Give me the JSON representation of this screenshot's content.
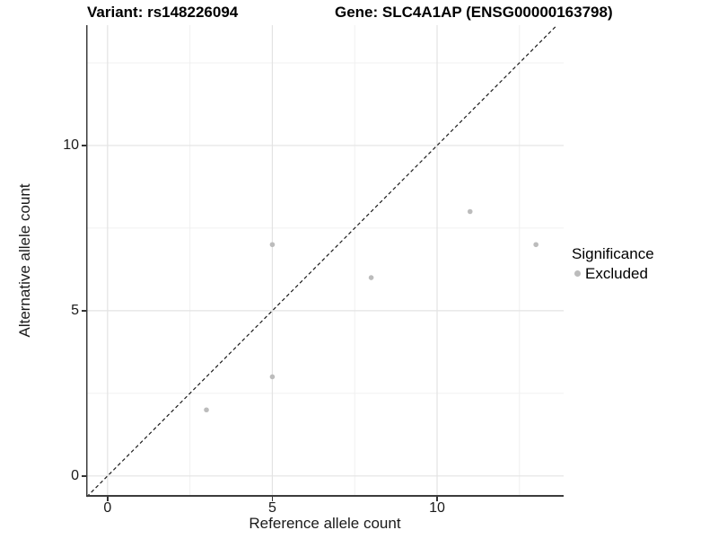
{
  "chart_data": {
    "type": "scatter",
    "title_left": "Variant: rs148226094",
    "title_right": "Gene: SLC4A1AP (ENSG00000163798)",
    "xlabel": "Reference allele count",
    "ylabel": "Alternative allele count",
    "xlim": [
      -0.65,
      13.84
    ],
    "ylim": [
      -0.63,
      13.64
    ],
    "x_major_ticks": [
      0,
      5,
      10
    ],
    "x_minor_ticks": [
      2.5,
      7.5,
      12.5
    ],
    "y_major_ticks": [
      0,
      5,
      10
    ],
    "y_minor_ticks": [
      2.5,
      7.5,
      12.5
    ],
    "grid": true,
    "points": [
      {
        "x": 3,
        "y": 2,
        "group": "Excluded"
      },
      {
        "x": 5,
        "y": 3,
        "group": "Excluded"
      },
      {
        "x": 5,
        "y": 7,
        "group": "Excluded"
      },
      {
        "x": 8,
        "y": 6,
        "group": "Excluded"
      },
      {
        "x": 11,
        "y": 8,
        "group": "Excluded"
      },
      {
        "x": 13,
        "y": 7,
        "group": "Excluded"
      }
    ],
    "abline": {
      "slope": 1,
      "intercept": 0,
      "style": "dashed"
    },
    "colors": {
      "point": "#bcbcbc",
      "grid_major": "#e3e3e3",
      "grid_minor": "#f0f0f0",
      "axis_line": "#3c3c3c",
      "abline": "#1a1a1a"
    },
    "legend": {
      "title": "Significance",
      "position": "right",
      "items": [
        {
          "label": "Excluded",
          "color": "#bcbcbc"
        }
      ]
    }
  }
}
